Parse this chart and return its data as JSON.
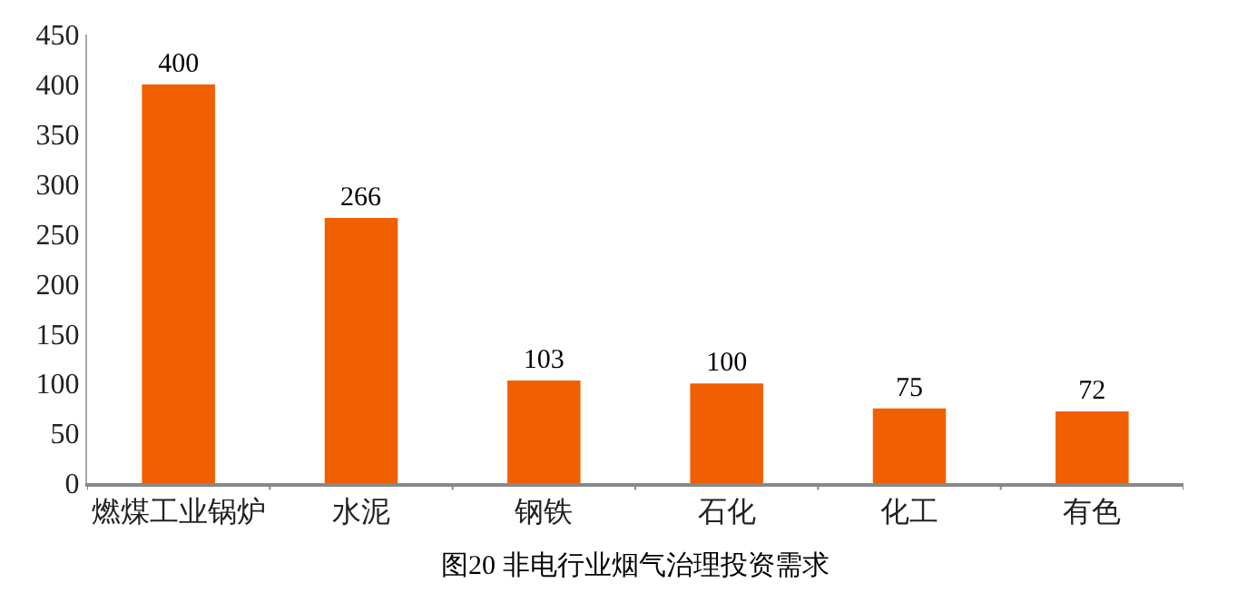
{
  "chart_data": {
    "type": "bar",
    "title": "图20 非电行业烟气治理投资需求",
    "categories": [
      "燃煤工业锅炉",
      "水泥",
      "钢铁",
      "石化",
      "化工",
      "有色"
    ],
    "values": [
      400,
      266,
      103,
      100,
      75,
      72
    ],
    "color": "#f06000",
    "ylim": [
      0,
      450
    ],
    "yticks": [
      0,
      50,
      100,
      150,
      200,
      250,
      300,
      350,
      400,
      450
    ],
    "data_labels": true,
    "legend": false
  }
}
